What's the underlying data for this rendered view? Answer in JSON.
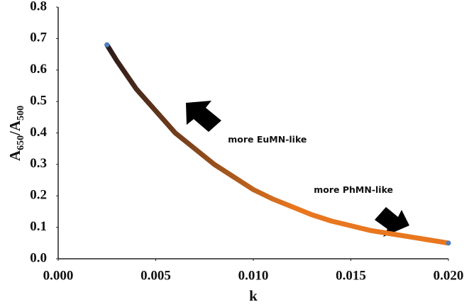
{
  "chart_data": {
    "type": "line",
    "x_label": "k",
    "y_label": [
      {
        "text": "A"
      },
      {
        "text": "650",
        "sub": true
      },
      {
        "text": "/A"
      },
      {
        "text": "500",
        "sub": true
      }
    ],
    "x": [
      0.0025,
      0.003,
      0.004,
      0.005,
      0.006,
      0.007,
      0.008,
      0.009,
      0.01,
      0.011,
      0.012,
      0.013,
      0.014,
      0.015,
      0.016,
      0.017,
      0.018,
      0.019,
      0.02
    ],
    "series": [
      {
        "colors": [
          "#2a1a1a",
          "#e8771f"
        ],
        "endpoint_color": "#4f7fbf",
        "values": [
          0.68,
          0.63,
          0.54,
          0.47,
          0.4,
          0.35,
          0.3,
          0.26,
          0.22,
          0.19,
          0.165,
          0.14,
          0.12,
          0.105,
          0.09,
          0.08,
          0.07,
          0.06,
          0.05
        ]
      }
    ],
    "annotations": [
      {
        "text": "more EuMN-like",
        "x": 0.0087,
        "y": 0.37
      },
      {
        "text": "more PhMN-like",
        "x": 0.0131,
        "y": 0.21
      }
    ],
    "xlim": [
      0,
      0.02
    ],
    "ylim": [
      0,
      0.8
    ],
    "xticks": [
      {
        "value": 0,
        "label": "0.000"
      },
      {
        "value": 0.005,
        "label": "0.005"
      },
      {
        "value": 0.01,
        "label": "0.010"
      },
      {
        "value": 0.015,
        "label": "0.015"
      },
      {
        "value": 0.02,
        "label": "0.020"
      }
    ],
    "yticks": [
      {
        "value": 0,
        "label": "0.0"
      },
      0.1,
      0.2,
      0.3,
      0.4,
      0.5,
      0.6,
      0.7,
      0.8
    ],
    "grid": false
  }
}
